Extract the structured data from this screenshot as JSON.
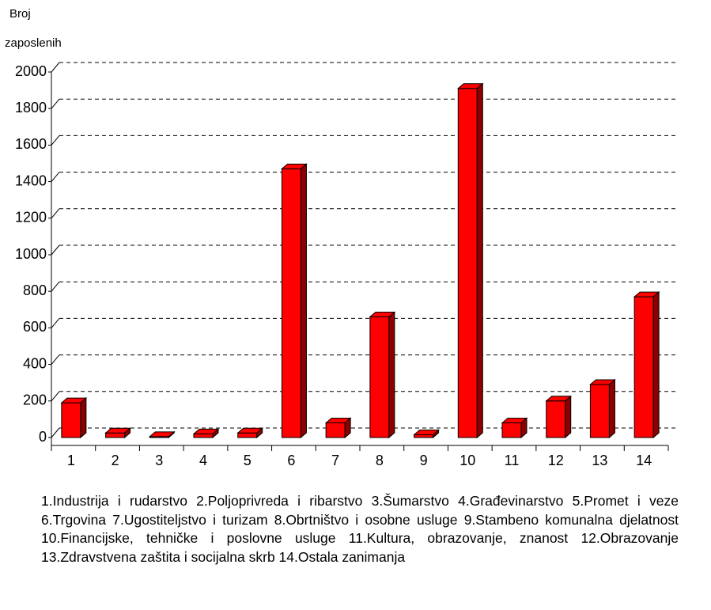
{
  "chart_data": {
    "type": "bar3d",
    "y_label": [
      "Broj",
      "zaposlenih"
    ],
    "categories": [
      "1",
      "2",
      "3",
      "4",
      "5",
      "6",
      "7",
      "8",
      "9",
      "10",
      "11",
      "12",
      "13",
      "14"
    ],
    "values": [
      190,
      25,
      5,
      20,
      25,
      1470,
      80,
      660,
      15,
      1910,
      80,
      200,
      290,
      770
    ],
    "color": "#ff0000",
    "ylim": [
      0,
      2000
    ],
    "yticks": [
      0,
      200,
      400,
      600,
      800,
      1000,
      1200,
      1400,
      1600,
      1800,
      2000
    ],
    "grid": true,
    "caption": "1.Industrija i rudarstvo 2.Poljoprivreda i ribarstvo 3.Šumarstvo 4.Građevinarstvo 5.Promet i veze 6.Trgovina 7.Ugostiteljstvo i turizam 8.Obrtništvo i osobne usluge 9.Stambeno komunalna djelatnost 10.Financijske, tehničke i poslovne usluge 11.Kultura, obrazovanje, znanost 12.Obrazovanje 13.Zdravstvena zaštita i socijalna skrb 14.Ostala zanimanja"
  }
}
